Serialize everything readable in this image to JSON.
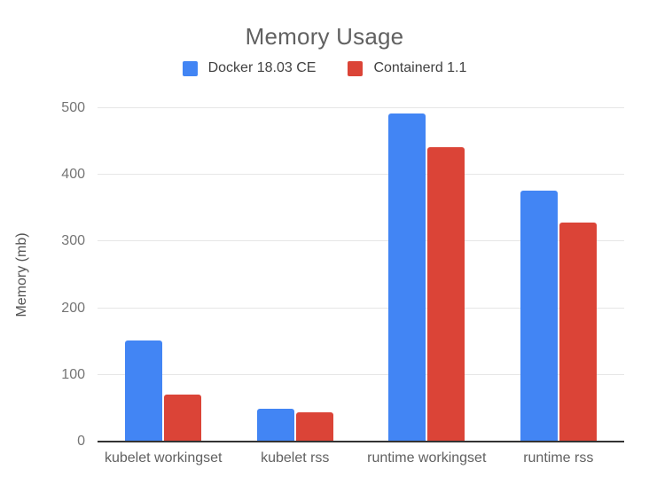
{
  "chart_data": {
    "type": "bar",
    "title": "Memory Usage",
    "ylabel": "Memory (mb)",
    "xlabel": "",
    "categories": [
      "kubelet workingset",
      "kubelet rss",
      "runtime workingset",
      "runtime rss"
    ],
    "series": [
      {
        "name": "Docker 18.03 CE",
        "color": "#4285F4",
        "values": [
          152,
          49,
          492,
          377
        ]
      },
      {
        "name": "Containerd 1.1",
        "color": "#DB4437",
        "values": [
          71,
          44,
          442,
          328
        ]
      }
    ],
    "ylim": [
      0,
      500
    ],
    "yticks": [
      0,
      100,
      200,
      300,
      400,
      500
    ],
    "grid": true,
    "legend_position": "top"
  },
  "colors": {
    "background": "#ffffff",
    "title_text": "#616161",
    "legend_text": "#424242",
    "tick_text": "#757575",
    "axis_title_text": "#545454",
    "gridline": "#e6e6e6",
    "baseline": "#333333"
  }
}
